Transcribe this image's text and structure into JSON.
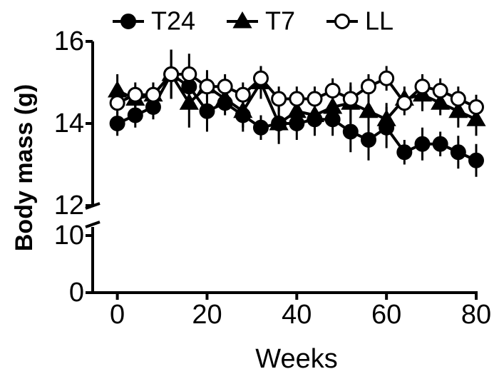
{
  "chart_data": {
    "type": "line",
    "x_label": "Weeks",
    "y_label": "Body mass (g)",
    "x": [
      0,
      4,
      8,
      12,
      16,
      20,
      24,
      28,
      32,
      36,
      40,
      44,
      48,
      52,
      56,
      60,
      64,
      68,
      72,
      76,
      80
    ],
    "xlim": [
      -5.5,
      80
    ],
    "xticks": [
      0,
      20,
      40,
      60,
      80
    ],
    "ylim": [
      0,
      16
    ],
    "y_segments": [
      [
        0,
        11.5
      ],
      [
        12,
        16
      ]
    ],
    "yticks": [
      0,
      10,
      12,
      14,
      16
    ],
    "legend": "top",
    "series": [
      {
        "name": "T24",
        "marker": "circle",
        "color": "#000000",
        "values": [
          14.0,
          14.2,
          14.4,
          15.2,
          14.9,
          14.3,
          14.5,
          14.2,
          13.9,
          14.0,
          14.0,
          14.1,
          14.1,
          13.8,
          13.6,
          13.9,
          13.3,
          13.5,
          13.5,
          13.3,
          13.1
        ],
        "errors": [
          0.3,
          0.3,
          0.3,
          0.6,
          0.5,
          0.5,
          0.3,
          0.4,
          0.3,
          0.4,
          0.4,
          0.4,
          0.4,
          0.5,
          0.5,
          0.5,
          0.3,
          0.4,
          0.3,
          0.4,
          0.4
        ]
      },
      {
        "name": "T7",
        "marker": "triangle",
        "color": "#000000",
        "values": [
          14.8,
          14.6,
          14.7,
          15.2,
          14.5,
          14.9,
          14.6,
          14.3,
          15.0,
          14.0,
          14.3,
          14.2,
          14.4,
          14.5,
          14.3,
          14.1,
          14.6,
          14.7,
          14.5,
          14.3,
          14.1
        ],
        "errors": [
          0.4,
          0.3,
          0.3,
          0.6,
          0.6,
          0.4,
          0.3,
          0.4,
          0.4,
          0.5,
          0.4,
          0.4,
          0.4,
          0.5,
          0.4,
          0.4,
          0.3,
          0.4,
          0.3,
          0.4,
          0.4
        ]
      },
      {
        "name": "LL",
        "marker": "open-circle",
        "color": "#ffffff",
        "values": [
          14.5,
          14.7,
          14.7,
          15.2,
          15.2,
          14.9,
          14.9,
          14.7,
          15.1,
          14.6,
          14.6,
          14.6,
          14.8,
          14.6,
          14.9,
          15.1,
          14.5,
          14.9,
          14.8,
          14.6,
          14.4
        ],
        "errors": [
          0.3,
          0.3,
          0.3,
          0.6,
          0.5,
          0.3,
          0.3,
          0.3,
          0.3,
          0.3,
          0.3,
          0.3,
          0.3,
          0.3,
          0.3,
          0.3,
          0.3,
          0.3,
          0.3,
          0.3,
          0.3
        ]
      }
    ]
  }
}
